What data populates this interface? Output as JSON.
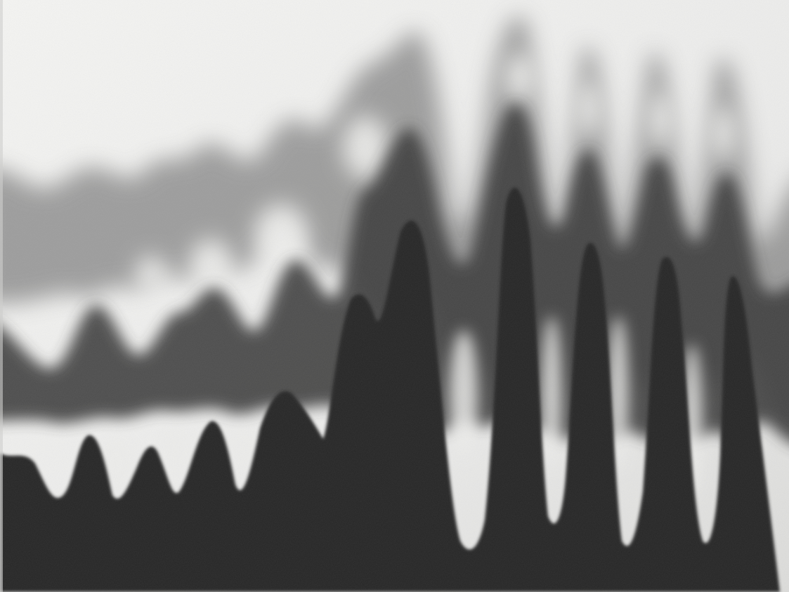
{
  "image": {
    "subject": "abstract-wave-ridges",
    "palette": {
      "paper": "#ededeb",
      "paper_shadow": "#d2d2d0",
      "back_band": "#8f8f8f",
      "middle_band": "#3c3c3c",
      "front_silhouette": "#262626"
    },
    "layers": [
      {
        "name": "back-wave-band",
        "tone": "light-gray",
        "blur": "strong"
      },
      {
        "name": "middle-wave-band",
        "tone": "dark-gray",
        "blur": "medium"
      },
      {
        "name": "front-silhouette",
        "tone": "near-black",
        "blur": "slight"
      }
    ]
  }
}
